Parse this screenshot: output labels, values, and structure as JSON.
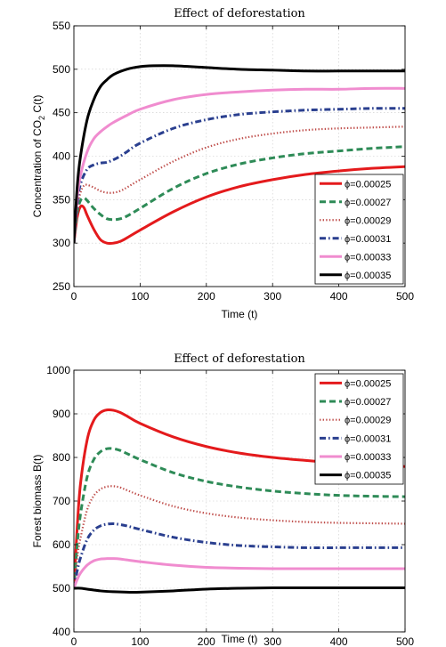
{
  "chart_data": [
    {
      "type": "line",
      "title": "Effect of deforestation",
      "xlabel": "Time (t)",
      "ylabel": "Concentration of CO",
      "ylabel_sub": "2",
      "ylabel_tail": " C(t)",
      "xlim": [
        0,
        500
      ],
      "ylim": [
        250,
        550
      ],
      "xticks": [
        0,
        100,
        200,
        300,
        400,
        500
      ],
      "yticks": [
        250,
        300,
        350,
        400,
        450,
        500,
        550
      ],
      "grid": true,
      "legend_position": "lower-right",
      "series": [
        {
          "name": "ϕ=0.00025",
          "color": "#e41a1c",
          "style": "solid",
          "x": [
            0,
            5,
            10,
            15,
            20,
            30,
            40,
            50,
            60,
            70,
            80,
            100,
            150,
            200,
            250,
            300,
            350,
            400,
            450,
            500
          ],
          "y": [
            300,
            330,
            342,
            341,
            332,
            316,
            304,
            300,
            300,
            302,
            306,
            315,
            336,
            353,
            365,
            373,
            379,
            383,
            386,
            388
          ]
        },
        {
          "name": "ϕ=0.00027",
          "color": "#2e8b57",
          "style": "dashed",
          "x": [
            0,
            5,
            10,
            15,
            20,
            30,
            40,
            50,
            60,
            70,
            80,
            100,
            150,
            200,
            250,
            300,
            350,
            400,
            450,
            500
          ],
          "y": [
            300,
            335,
            349,
            352,
            349,
            340,
            333,
            328,
            327,
            328,
            331,
            340,
            363,
            380,
            391,
            398,
            403,
            406,
            409,
            411
          ]
        },
        {
          "name": "ϕ=0.00029",
          "color": "#c0504d",
          "style": "dotted",
          "x": [
            0,
            5,
            10,
            15,
            20,
            30,
            40,
            50,
            60,
            70,
            80,
            100,
            150,
            200,
            250,
            300,
            350,
            400,
            450,
            500
          ],
          "y": [
            300,
            340,
            358,
            366,
            367,
            364,
            360,
            358,
            358,
            360,
            364,
            373,
            394,
            410,
            420,
            426,
            430,
            432,
            433,
            434
          ]
        },
        {
          "name": "ϕ=0.00031",
          "color": "#2a3f8f",
          "style": "dashdot",
          "x": [
            0,
            5,
            10,
            20,
            30,
            40,
            50,
            60,
            70,
            80,
            100,
            150,
            200,
            250,
            300,
            350,
            400,
            450,
            500
          ],
          "y": [
            300,
            345,
            368,
            385,
            390,
            392,
            393,
            396,
            400,
            405,
            415,
            432,
            442,
            448,
            451,
            453,
            454,
            455,
            455
          ]
        },
        {
          "name": "ϕ=0.00033",
          "color": "#f08ccf",
          "style": "solid",
          "x": [
            0,
            5,
            10,
            20,
            30,
            40,
            50,
            60,
            80,
            100,
            150,
            200,
            250,
            300,
            350,
            400,
            450,
            500
          ],
          "y": [
            300,
            352,
            378,
            405,
            420,
            428,
            434,
            439,
            447,
            454,
            465,
            471,
            474,
            476,
            477,
            477,
            478,
            478
          ]
        },
        {
          "name": "ϕ=0.00035",
          "color": "#000000",
          "style": "solid",
          "x": [
            0,
            5,
            10,
            20,
            30,
            40,
            50,
            60,
            80,
            100,
            120,
            150,
            200,
            250,
            300,
            350,
            400,
            450,
            500
          ],
          "y": [
            300,
            365,
            400,
            442,
            465,
            480,
            488,
            494,
            500,
            503,
            504,
            504,
            502,
            500,
            499,
            498,
            498,
            498,
            498
          ]
        }
      ]
    },
    {
      "type": "line",
      "title": "Effect of deforestation",
      "xlabel": "Time (t)",
      "ylabel": "Forest biomass B(t)",
      "xlim": [
        0,
        500
      ],
      "ylim": [
        400,
        1000
      ],
      "xticks": [
        0,
        100,
        200,
        300,
        400,
        500
      ],
      "yticks": [
        400,
        500,
        600,
        700,
        800,
        900,
        1000
      ],
      "grid": true,
      "legend_position": "top-right",
      "series": [
        {
          "name": "ϕ=0.00025",
          "color": "#e41a1c",
          "style": "solid",
          "x": [
            0,
            5,
            10,
            20,
            30,
            40,
            50,
            60,
            70,
            80,
            100,
            150,
            200,
            250,
            300,
            350,
            400,
            450,
            500
          ],
          "y": [
            500,
            640,
            740,
            840,
            885,
            903,
            909,
            908,
            903,
            895,
            878,
            847,
            825,
            810,
            800,
            793,
            787,
            783,
            779
          ]
        },
        {
          "name": "ϕ=0.00027",
          "color": "#2e8b57",
          "style": "dashed",
          "x": [
            0,
            5,
            10,
            20,
            30,
            40,
            50,
            60,
            70,
            80,
            100,
            150,
            200,
            250,
            300,
            350,
            400,
            450,
            500
          ],
          "y": [
            500,
            600,
            670,
            755,
            795,
            813,
            820,
            820,
            816,
            809,
            795,
            765,
            745,
            732,
            723,
            717,
            713,
            711,
            710
          ]
        },
        {
          "name": "ϕ=0.00029",
          "color": "#c0504d",
          "style": "dotted",
          "x": [
            0,
            5,
            10,
            20,
            30,
            40,
            50,
            60,
            70,
            80,
            100,
            150,
            200,
            250,
            300,
            350,
            400,
            450,
            500
          ],
          "y": [
            500,
            570,
            615,
            680,
            712,
            727,
            733,
            734,
            731,
            725,
            713,
            688,
            672,
            662,
            656,
            652,
            650,
            649,
            648
          ]
        },
        {
          "name": "ϕ=0.00031",
          "color": "#2a3f8f",
          "style": "dashdot",
          "x": [
            0,
            5,
            10,
            20,
            30,
            40,
            50,
            60,
            70,
            80,
            100,
            150,
            200,
            250,
            300,
            350,
            400,
            450,
            500
          ],
          "y": [
            500,
            540,
            570,
            612,
            633,
            643,
            647,
            648,
            646,
            643,
            635,
            617,
            605,
            598,
            595,
            593,
            593,
            593,
            593
          ]
        },
        {
          "name": "ϕ=0.00033",
          "color": "#f08ccf",
          "style": "solid",
          "x": [
            0,
            5,
            10,
            20,
            30,
            40,
            50,
            60,
            70,
            80,
            100,
            150,
            200,
            250,
            300,
            350,
            400,
            450,
            500
          ],
          "y": [
            500,
            520,
            535,
            553,
            563,
            567,
            568,
            568,
            567,
            565,
            561,
            553,
            548,
            546,
            545,
            545,
            545,
            545,
            545
          ]
        },
        {
          "name": "ϕ=0.00035",
          "color": "#000000",
          "style": "solid",
          "x": [
            0,
            10,
            20,
            40,
            60,
            80,
            100,
            150,
            200,
            250,
            300,
            350,
            400,
            450,
            500
          ],
          "y": [
            500,
            500,
            498,
            494,
            492,
            491,
            491,
            494,
            498,
            500,
            501,
            501,
            501,
            501,
            501
          ]
        }
      ]
    }
  ]
}
